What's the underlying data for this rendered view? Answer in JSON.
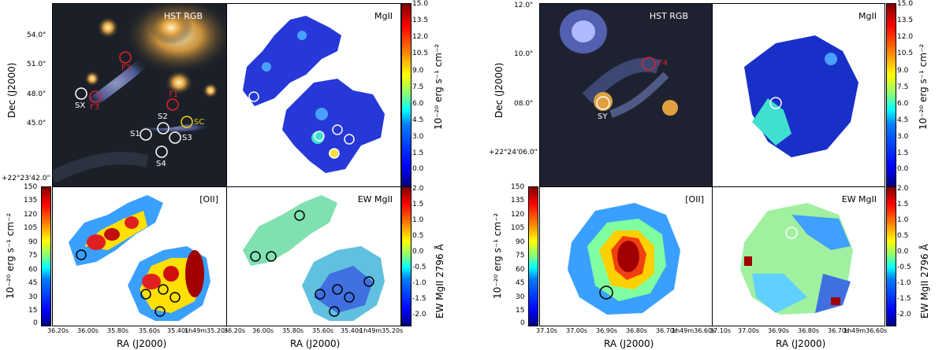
{
  "colors": {
    "red": "#e0202c",
    "white": "#ffffff",
    "yellow": "#f0d020",
    "black": "#000000"
  },
  "left": {
    "hst_title": "HST RGB",
    "mgii_title": "MgII",
    "oii_title": "[OII]",
    "ew_title": "EW MgII",
    "dec_label": "Dec (J2000)",
    "ra_label_a": "RA (J2000)",
    "ra_label_b": "RA (J2000)",
    "dec_ticks": [
      "54.0\"",
      "51.0\"",
      "48.0\"",
      "45.0\"",
      "+22°23'42.0\""
    ],
    "ra_ticks_a": [
      "36.20s",
      "36.00s",
      "35.80s",
      "35.60s",
      "35.40s",
      "1h49m35.20s"
    ],
    "ra_ticks_b": [
      "36.20s",
      "36.00s",
      "35.80s",
      "35.60s",
      "35.40s",
      "1h49m35.20s"
    ],
    "labels": {
      "f2": "F2",
      "f3": "F3",
      "f1": "F1",
      "sx": "SX",
      "s1": "S1",
      "s2": "S2",
      "s3": "S3",
      "s4": "S4",
      "sc": "SC"
    }
  },
  "right": {
    "hst_title": "HST RGB",
    "mgii_title": "MgII",
    "oii_title": "[OII]",
    "ew_title": "EW MgII",
    "dec_label": "Dec (J2000)",
    "ra_label_a": "RA (J2000)",
    "ra_label_b": "RA (J2000)",
    "dec_ticks": [
      "12.0\"",
      "10.0\"",
      "08.0\"",
      "+22°24'06.0\""
    ],
    "ra_ticks_a": [
      "37.10s",
      "37.00s",
      "36.90s",
      "36.80s",
      "36.70s",
      "1h49m36.60s"
    ],
    "ra_ticks_b": [
      "37.10s",
      "37.00s",
      "36.90s",
      "36.80s",
      "36.70s",
      "1h49m36.60s"
    ],
    "labels": {
      "f4": "F4",
      "sy": "SY"
    }
  },
  "colorbars": {
    "mgii_label": "10$^{-20}$ erg s$^{-1}$ cm$^{-2}$",
    "mgii_label_text": "10⁻²⁰ erg s⁻¹ cm⁻²",
    "mgii_ticks": [
      "15.0",
      "13.5",
      "12.0",
      "10.5",
      "9.0",
      "7.5",
      "6.0",
      "4.5",
      "3.0",
      "1.5",
      "0.0"
    ],
    "oii_label_text": "10⁻²⁰ erg s⁻¹ cm⁻²",
    "oii_ticks": [
      "150",
      "135",
      "120",
      "105",
      "90",
      "75",
      "60",
      "45",
      "30",
      "15",
      "0"
    ],
    "ew_label_text": "EW MgII 2796 Å",
    "ew_ticks": [
      "2.0",
      "1.5",
      "1.0",
      "0.5",
      "0.0",
      "-0.5",
      "-1.0",
      "-1.5",
      "-2.0"
    ],
    "right_oii_label_text": "10  20  erg s  1  cm  2",
    "right_oii_label_display": "10⁻²⁰ erg s⁻¹ cm⁻²"
  }
}
